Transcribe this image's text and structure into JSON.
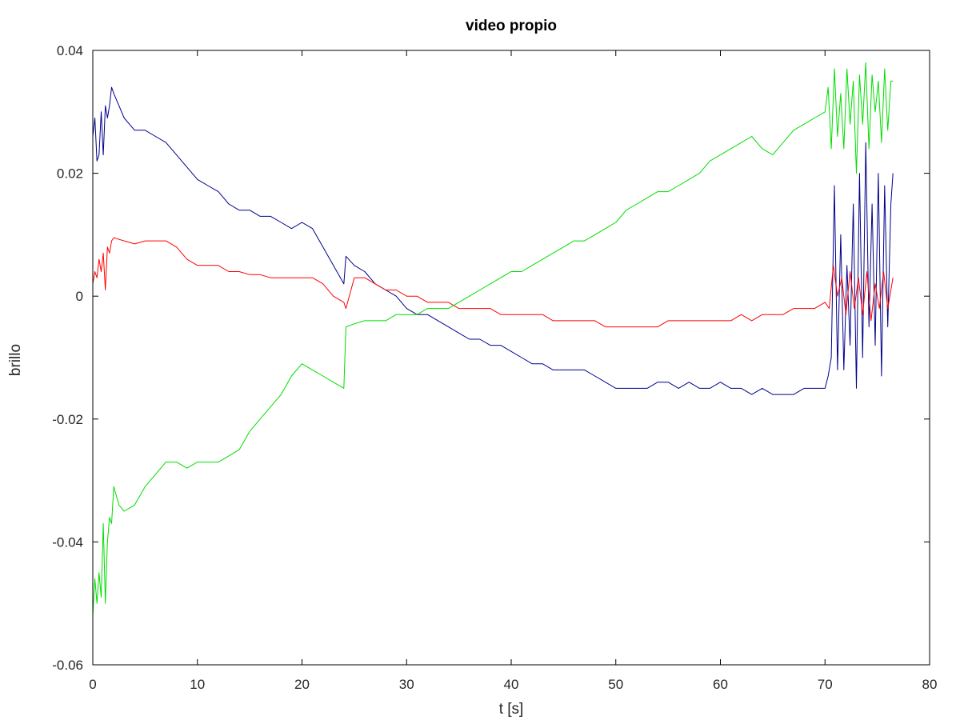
{
  "chart_data": {
    "type": "line",
    "title": "video propio",
    "xlabel": "t [s]",
    "ylabel": "brillo",
    "xlim": [
      0,
      80
    ],
    "ylim": [
      -0.06,
      0.04
    ],
    "xticks": [
      "0",
      "10",
      "20",
      "30",
      "40",
      "50",
      "60",
      "70",
      "80"
    ],
    "yticks": [
      "0.04",
      "0.02",
      "0",
      "-0.02",
      "-0.04",
      "-0.06"
    ],
    "grid": false,
    "legend": "none",
    "series": [
      {
        "color": "#00008b",
        "x": [
          0,
          0.2,
          0.4,
          0.6,
          0.8,
          1.0,
          1.2,
          1.4,
          1.6,
          1.8,
          2.0,
          2.5,
          3,
          4,
          5,
          6,
          7,
          8,
          9,
          10,
          11,
          12,
          13,
          14,
          15,
          16,
          17,
          18,
          19,
          20,
          21,
          22,
          23,
          24,
          24.2,
          25,
          26,
          27,
          28,
          29,
          30,
          31,
          32,
          33,
          34,
          35,
          36,
          37,
          38,
          39,
          40,
          41,
          42,
          43,
          44,
          45,
          46,
          47,
          48,
          49,
          50,
          51,
          52,
          53,
          54,
          55,
          56,
          57,
          58,
          59,
          60,
          61,
          62,
          63,
          64,
          65,
          66,
          67,
          68,
          69,
          70,
          70.3,
          70.6,
          70.9,
          71.2,
          71.5,
          71.8,
          72.1,
          72.4,
          72.7,
          73.0,
          73.3,
          73.6,
          73.9,
          74.2,
          74.5,
          74.8,
          75.1,
          75.4,
          75.7,
          76.0,
          76.3,
          76.5
        ],
        "y": [
          0.026,
          0.029,
          0.022,
          0.023,
          0.03,
          0.023,
          0.031,
          0.029,
          0.031,
          0.034,
          0.033,
          0.031,
          0.029,
          0.027,
          0.027,
          0.026,
          0.025,
          0.023,
          0.021,
          0.019,
          0.018,
          0.017,
          0.015,
          0.014,
          0.014,
          0.013,
          0.013,
          0.012,
          0.011,
          0.012,
          0.011,
          0.008,
          0.005,
          0.002,
          0.0065,
          0.005,
          0.004,
          0.002,
          0.001,
          0.0,
          -0.002,
          -0.003,
          -0.003,
          -0.004,
          -0.005,
          -0.006,
          -0.007,
          -0.007,
          -0.008,
          -0.008,
          -0.009,
          -0.01,
          -0.011,
          -0.011,
          -0.012,
          -0.012,
          -0.012,
          -0.012,
          -0.013,
          -0.014,
          -0.015,
          -0.015,
          -0.015,
          -0.015,
          -0.014,
          -0.014,
          -0.015,
          -0.014,
          -0.015,
          -0.015,
          -0.014,
          -0.015,
          -0.015,
          -0.016,
          -0.015,
          -0.016,
          -0.016,
          -0.016,
          -0.015,
          -0.015,
          -0.015,
          -0.013,
          -0.01,
          0.018,
          -0.012,
          0.01,
          -0.012,
          0.005,
          -0.008,
          0.015,
          -0.015,
          0.02,
          -0.01,
          0.025,
          -0.005,
          0.015,
          -0.008,
          0.02,
          -0.013,
          0.018,
          -0.005,
          0.015,
          0.02
        ]
      },
      {
        "color": "#ff0000",
        "x": [
          0,
          0.2,
          0.4,
          0.6,
          0.8,
          1.0,
          1.2,
          1.4,
          1.6,
          1.8,
          2.0,
          3,
          4,
          5,
          6,
          7,
          8,
          9,
          10,
          11,
          12,
          13,
          14,
          15,
          16,
          17,
          18,
          19,
          20,
          21,
          22,
          23,
          24,
          24.2,
          25,
          26,
          27,
          28,
          29,
          30,
          31,
          32,
          33,
          34,
          35,
          36,
          37,
          38,
          39,
          40,
          41,
          42,
          43,
          44,
          45,
          46,
          47,
          48,
          49,
          50,
          51,
          52,
          53,
          54,
          55,
          56,
          57,
          58,
          59,
          60,
          61,
          62,
          63,
          64,
          65,
          66,
          67,
          68,
          69,
          70,
          70.4,
          70.8,
          71.2,
          71.6,
          72.0,
          72.4,
          72.8,
          73.2,
          73.6,
          74.0,
          74.4,
          74.8,
          75.2,
          75.6,
          76.0,
          76.5
        ],
        "y": [
          0.002,
          0.004,
          0.003,
          0.006,
          0.004,
          0.007,
          0.001,
          0.008,
          0.007,
          0.009,
          0.0095,
          0.009,
          0.0085,
          0.009,
          0.009,
          0.009,
          0.008,
          0.006,
          0.005,
          0.005,
          0.005,
          0.004,
          0.004,
          0.0035,
          0.0035,
          0.003,
          0.003,
          0.003,
          0.003,
          0.003,
          0.002,
          0.0,
          -0.001,
          -0.002,
          0.003,
          0.003,
          0.002,
          0.001,
          0.001,
          0.0,
          0.0,
          -0.001,
          -0.001,
          -0.001,
          -0.002,
          -0.002,
          -0.002,
          -0.002,
          -0.003,
          -0.003,
          -0.003,
          -0.003,
          -0.003,
          -0.004,
          -0.004,
          -0.004,
          -0.004,
          -0.004,
          -0.005,
          -0.005,
          -0.005,
          -0.005,
          -0.005,
          -0.005,
          -0.004,
          -0.004,
          -0.004,
          -0.004,
          -0.004,
          -0.004,
          -0.004,
          -0.003,
          -0.004,
          -0.003,
          -0.003,
          -0.003,
          -0.002,
          -0.002,
          -0.002,
          -0.001,
          -0.002,
          0.005,
          0.0,
          0.003,
          -0.003,
          0.004,
          -0.002,
          0.003,
          -0.003,
          0.004,
          -0.004,
          0.002,
          -0.002,
          0.004,
          -0.002,
          0.003
        ]
      },
      {
        "color": "#00dd00",
        "x": [
          0,
          0.2,
          0.4,
          0.6,
          0.8,
          1.0,
          1.2,
          1.4,
          1.6,
          1.8,
          2.0,
          2.5,
          3,
          4,
          5,
          6,
          7,
          8,
          9,
          10,
          11,
          12,
          13,
          14,
          15,
          16,
          17,
          18,
          19,
          20,
          21,
          22,
          23,
          24,
          24.2,
          25,
          26,
          27,
          28,
          29,
          30,
          31,
          32,
          33,
          34,
          35,
          36,
          37,
          38,
          39,
          40,
          41,
          42,
          43,
          44,
          45,
          46,
          47,
          48,
          49,
          50,
          51,
          52,
          53,
          54,
          55,
          56,
          57,
          58,
          59,
          60,
          61,
          62,
          63,
          64,
          65,
          66,
          67,
          68,
          69,
          70,
          70.3,
          70.6,
          70.9,
          71.2,
          71.5,
          71.8,
          72.1,
          72.4,
          72.7,
          73.0,
          73.3,
          73.6,
          73.9,
          74.2,
          74.5,
          74.8,
          75.1,
          75.4,
          75.7,
          76.0,
          76.3,
          76.5
        ],
        "y": [
          -0.052,
          -0.046,
          -0.05,
          -0.045,
          -0.049,
          -0.037,
          -0.05,
          -0.04,
          -0.036,
          -0.037,
          -0.031,
          -0.034,
          -0.035,
          -0.034,
          -0.031,
          -0.029,
          -0.027,
          -0.027,
          -0.028,
          -0.027,
          -0.027,
          -0.027,
          -0.026,
          -0.025,
          -0.022,
          -0.02,
          -0.018,
          -0.016,
          -0.013,
          -0.011,
          -0.012,
          -0.013,
          -0.014,
          -0.015,
          -0.005,
          -0.0045,
          -0.004,
          -0.004,
          -0.004,
          -0.003,
          -0.003,
          -0.003,
          -0.002,
          -0.002,
          -0.002,
          -0.001,
          0.0,
          0.001,
          0.002,
          0.003,
          0.004,
          0.004,
          0.005,
          0.006,
          0.007,
          0.008,
          0.009,
          0.009,
          0.01,
          0.011,
          0.012,
          0.014,
          0.015,
          0.016,
          0.017,
          0.017,
          0.018,
          0.019,
          0.02,
          0.022,
          0.023,
          0.024,
          0.025,
          0.026,
          0.024,
          0.023,
          0.025,
          0.027,
          0.028,
          0.029,
          0.03,
          0.034,
          0.024,
          0.037,
          0.026,
          0.033,
          0.024,
          0.037,
          0.028,
          0.035,
          0.02,
          0.036,
          0.028,
          0.038,
          0.024,
          0.036,
          0.03,
          0.035,
          0.025,
          0.037,
          0.027,
          0.035,
          0.035
        ]
      }
    ]
  }
}
